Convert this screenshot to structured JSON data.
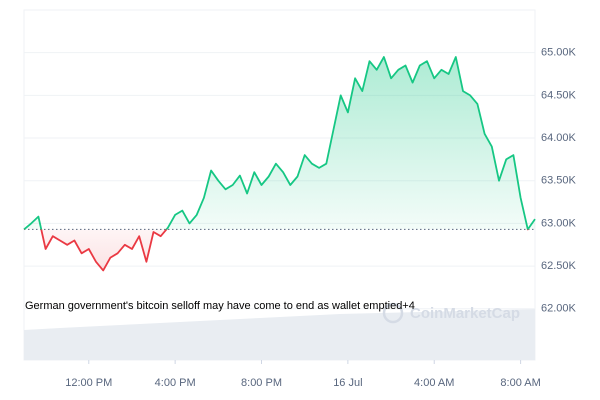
{
  "chart_data": {
    "type": "line",
    "series": [
      {
        "name": null,
        "color": "#16c784",
        "negative_color": "#ea3943",
        "values": [
          62930,
          63000,
          63080,
          62700,
          62850,
          62800,
          62750,
          62800,
          62650,
          62700,
          62550,
          62450,
          62600,
          62650,
          62750,
          62700,
          62850,
          62550,
          62900,
          62850,
          62950,
          63100,
          63150,
          63000,
          63100,
          63300,
          63620,
          63500,
          63400,
          63450,
          63560,
          63350,
          63600,
          63450,
          63550,
          63700,
          63600,
          63450,
          63550,
          63800,
          63700,
          63650,
          63700,
          64100,
          64500,
          64300,
          64700,
          64550,
          64900,
          64800,
          64950,
          64700,
          64800,
          64850,
          64650,
          64850,
          64900,
          64700,
          64800,
          64750,
          64950,
          64550,
          64500,
          64400,
          64050,
          63900,
          63500,
          63750,
          63800,
          63300,
          62930,
          63050
        ]
      }
    ],
    "baseline": 62930,
    "xlim": [
      0,
      71
    ],
    "xticks": [
      {
        "value": 9,
        "label": "12:00 PM"
      },
      {
        "value": 21,
        "label": "4:00 PM"
      },
      {
        "value": 33,
        "label": "8:00 PM"
      },
      {
        "value": 45,
        "label": "16 Jul"
      },
      {
        "value": 57,
        "label": "4:00 AM"
      },
      {
        "value": 69,
        "label": "8:00 AM"
      }
    ],
    "ylim": [
      61400,
      65500
    ],
    "yticks": [
      {
        "value": 62000,
        "label": "62.00K"
      },
      {
        "value": 62500,
        "label": "62.50K"
      },
      {
        "value": 63000,
        "label": "63.00K"
      },
      {
        "value": 63500,
        "label": "63.50K"
      },
      {
        "value": 64000,
        "label": "64.00K"
      },
      {
        "value": 64500,
        "label": "64.50K"
      },
      {
        "value": 65000,
        "label": "65.00K"
      }
    ],
    "grid": true,
    "annotation": "German government's bitcoin selloff may have come to end as wallet emptied+4",
    "watermark": "CoinMarketCap"
  }
}
